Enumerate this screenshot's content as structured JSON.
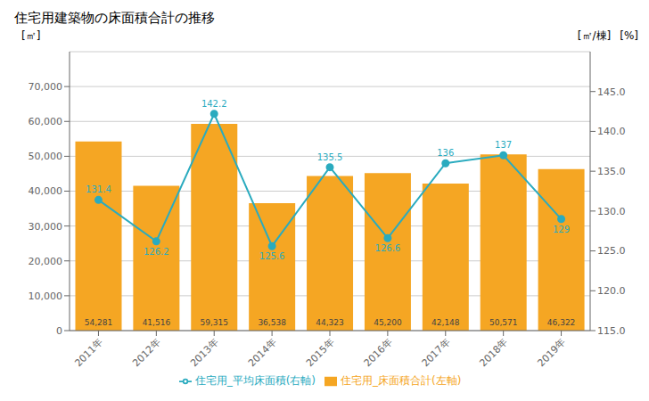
{
  "chart_data": {
    "type": "bar",
    "title": "住宅用建築物の床面積合計の推移",
    "categories": [
      "2011年",
      "2012年",
      "2013年",
      "2014年",
      "2015年",
      "2016年",
      "2017年",
      "2018年",
      "2019年"
    ],
    "series": [
      {
        "name": "住宅用_床面積合計(左軸)",
        "type": "bar",
        "color": "#F5A623",
        "values": [
          54281,
          41516,
          59315,
          36538,
          44323,
          45200,
          42148,
          50571,
          46322
        ],
        "value_labels": [
          "54,281",
          "41,516",
          "59,315",
          "36,538",
          "44,323",
          "45,200",
          "42,148",
          "50,571",
          "46,322"
        ]
      },
      {
        "name": "住宅用_平均床面積(右軸)",
        "type": "line",
        "axis": "y2",
        "color": "#2AABBF",
        "marker": "circle",
        "line_style": "solid",
        "values": [
          131.4,
          126.2,
          142.2,
          125.6,
          135.5,
          126.6,
          136,
          137,
          129
        ]
      }
    ],
    "ylabel": "[㎡]",
    "y2label": "[㎡/棟]",
    "annotations": [
      "[%]"
    ],
    "ylim": [
      0,
      80000
    ],
    "yticks": [
      0,
      {
        "value": 10000,
        "label": "10,000"
      },
      {
        "value": 20000,
        "label": "20,000"
      },
      {
        "value": 30000,
        "label": "30,000"
      },
      {
        "value": 40000,
        "label": "40,000"
      },
      {
        "value": 50000,
        "label": "50,000"
      },
      {
        "value": 60000,
        "label": "60,000"
      },
      {
        "value": 70000,
        "label": "70,000"
      }
    ],
    "y2lim": [
      115.0,
      150.0
    ],
    "y2ticks": [
      {
        "value": 115,
        "label": "115.0"
      },
      {
        "value": 120,
        "label": "120.0"
      },
      {
        "value": 125,
        "label": "125.0"
      },
      {
        "value": 130,
        "label": "130.0"
      },
      {
        "value": 135,
        "label": "135.0"
      },
      {
        "value": 140,
        "label": "140.0"
      },
      {
        "value": 145,
        "label": "145.0"
      }
    ],
    "grid": true,
    "legend": "bottom",
    "data_labels": true
  }
}
